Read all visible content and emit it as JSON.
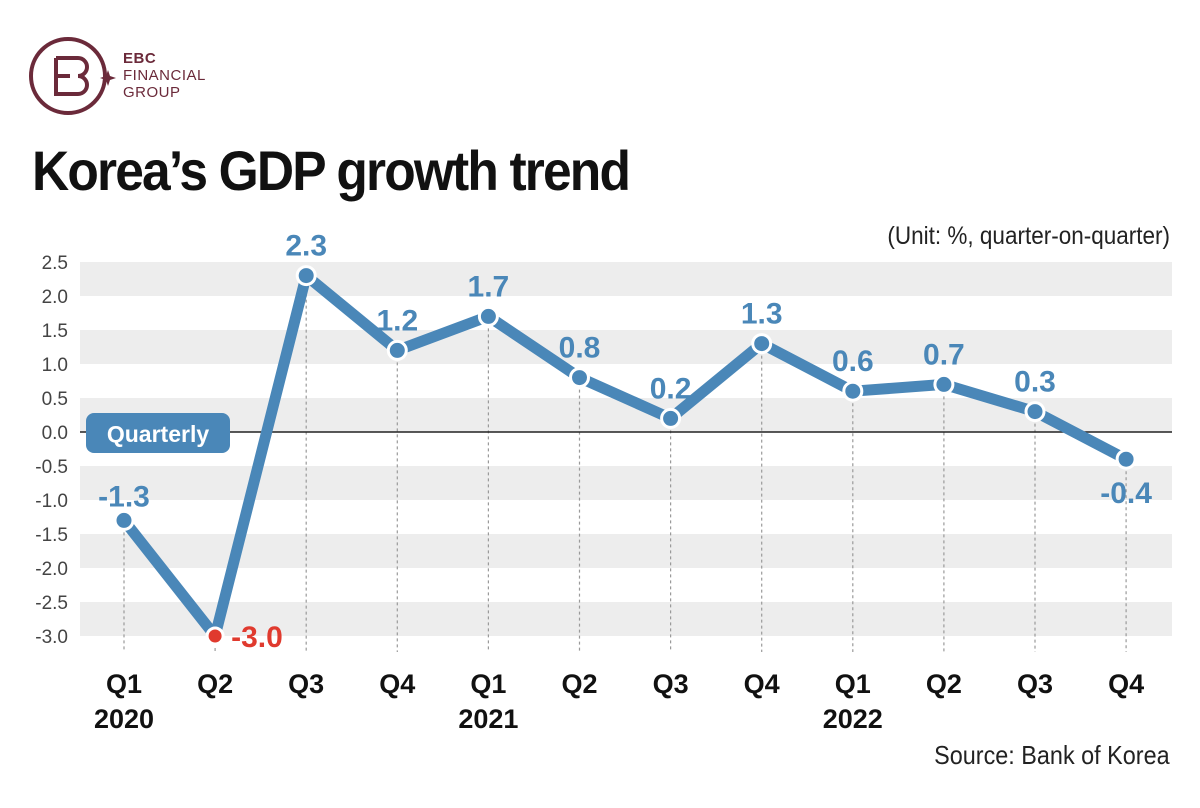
{
  "brand": {
    "line1": "EBC",
    "line2": "FINANCIAL",
    "line3": "GROUP",
    "logo": "ebc-monogram-icon",
    "color": "#6b2a3a"
  },
  "chart_data": {
    "type": "line",
    "title": "Korea’s GDP growth trend",
    "subtitle": "(Unit: %, quarter-on-quarter)",
    "source": "Source: Bank of Korea",
    "categories": [
      "Q1",
      "Q2",
      "Q3",
      "Q4",
      "Q1",
      "Q2",
      "Q3",
      "Q4",
      "Q1",
      "Q2",
      "Q3",
      "Q4"
    ],
    "year_labels": [
      {
        "year": "2020",
        "index": 0
      },
      {
        "year": "2021",
        "index": 4
      },
      {
        "year": "2022",
        "index": 8
      }
    ],
    "series": [
      {
        "name": "Quarterly",
        "values": [
          -1.3,
          -3.0,
          2.3,
          1.2,
          1.7,
          0.8,
          0.2,
          1.3,
          0.6,
          0.7,
          0.3,
          -0.4
        ],
        "labels": [
          "-1.3",
          "-3.0",
          "2.3",
          "1.2",
          "1.7",
          "0.8",
          "0.2",
          "1.3",
          "0.6",
          "0.7",
          "0.3",
          "-0.4"
        ],
        "color": "#4a87b8",
        "highlight_index": 1,
        "highlight_color": "#e03a2e"
      }
    ],
    "y_ticks": [
      "2.5",
      "2.0",
      "1.5",
      "1.0",
      "0.5",
      "0.0",
      "-0.5",
      "-1.0",
      "-1.5",
      "-2.0",
      "-2.5",
      "-3.0"
    ],
    "ylim": [
      -3.0,
      2.5
    ],
    "grid": "alternating bands",
    "legend": "left annotation",
    "xlabel": "",
    "ylabel": ""
  }
}
